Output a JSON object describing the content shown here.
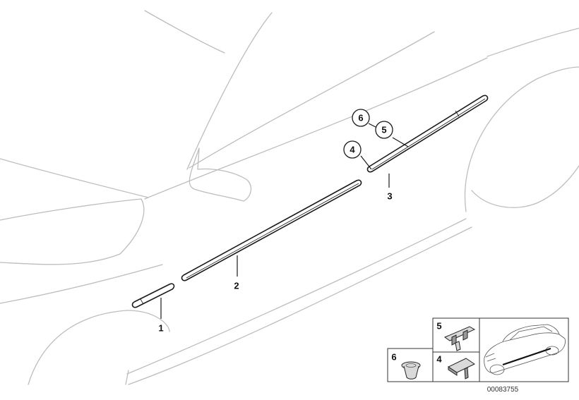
{
  "callouts": {
    "part_1": "1",
    "part_2": "2",
    "part_3": "3",
    "part_4": "4",
    "part_5": "5",
    "part_6": "6"
  },
  "inset": {
    "label_5": "5",
    "label_4": "4",
    "label_6": "6"
  },
  "diagram_code": "00083755",
  "colors": {
    "outline": "#bdbdbd",
    "ink": "#1a1a1a",
    "part_fill": "#d9d9d9"
  }
}
